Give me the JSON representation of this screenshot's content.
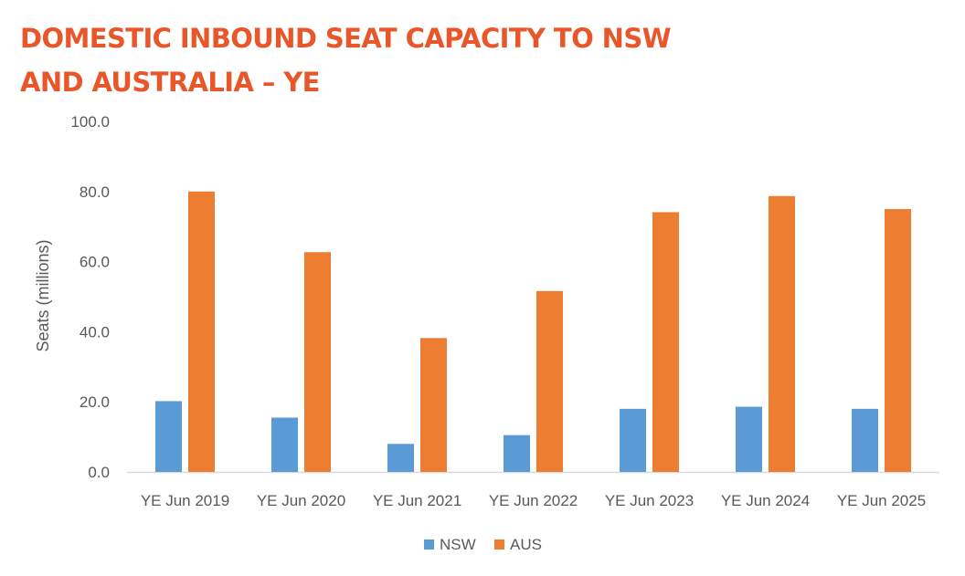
{
  "title_lines": [
    "DOMESTIC INBOUND SEAT CAPACITY TO NSW",
    "AND AUSTRALIA – YE"
  ],
  "chart_data": {
    "type": "bar",
    "title": "DOMESTIC INBOUND SEAT CAPACITY TO NSW AND AUSTRALIA – YE",
    "xlabel": "",
    "ylabel": "Seats (millions)",
    "categories": [
      "YE Jun 2019",
      "YE Jun 2020",
      "YE Jun 2021",
      "YE Jun 2022",
      "YE Jun 2023",
      "YE Jun 2024",
      "YE Jun 2025"
    ],
    "series": [
      {
        "name": "NSW",
        "color": "#5b9bd5",
        "values": [
          20.2,
          15.5,
          8.0,
          10.5,
          18.0,
          18.6,
          18.0
        ]
      },
      {
        "name": "AUS",
        "color": "#ed7d31",
        "values": [
          80.0,
          62.7,
          38.2,
          51.6,
          74.1,
          78.7,
          75.0
        ]
      }
    ],
    "ylim": [
      0,
      100
    ],
    "yticks": [
      "0.0",
      "20.0",
      "40.0",
      "60.0",
      "80.0",
      "100.0"
    ],
    "grid": false,
    "legend_position": "bottom"
  }
}
